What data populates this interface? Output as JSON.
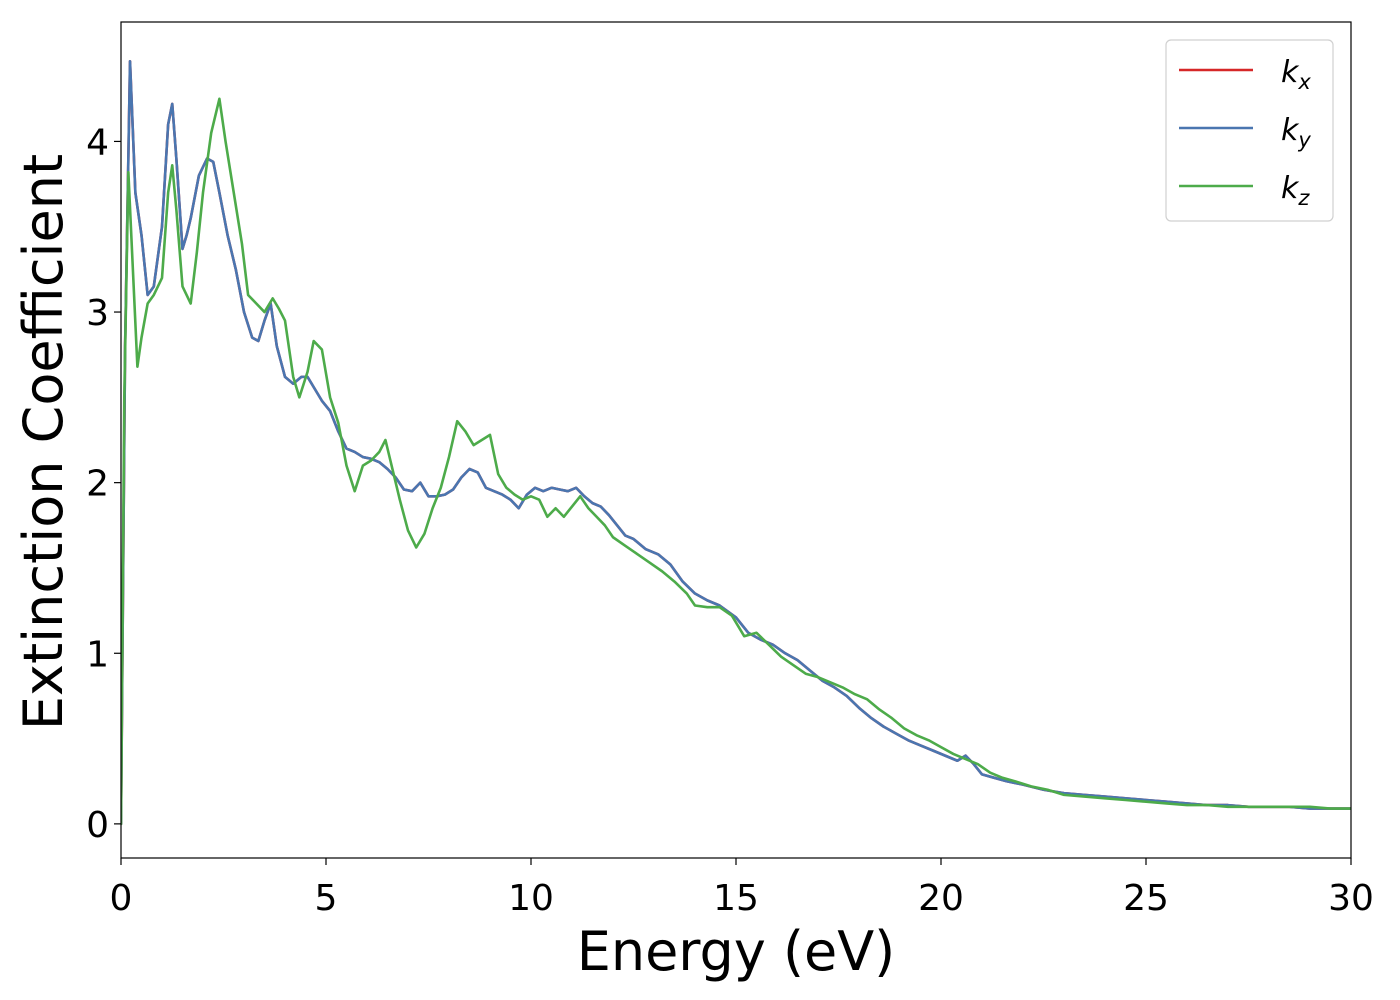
{
  "chart_data": {
    "type": "line",
    "xlabel": "Energy (eV)",
    "ylabel": "Extinction Coefficient",
    "xlim": [
      0,
      30
    ],
    "ylim": [
      -0.2,
      4.7
    ],
    "xticks": [
      0,
      5,
      10,
      15,
      20,
      25,
      30
    ],
    "xtick_labels": [
      "0",
      "5",
      "10",
      "15",
      "20",
      "25",
      "30"
    ],
    "yticks": [
      0,
      1,
      2,
      3,
      4
    ],
    "ytick_labels": [
      "0",
      "1",
      "2",
      "3",
      "4"
    ],
    "grid": false,
    "legend_position": "top-right",
    "series": [
      {
        "name": "k_x",
        "legend_base": "k",
        "legend_sub": "x",
        "color": "#d62728",
        "x": [
          0,
          0.1,
          0.22,
          0.35,
          0.5,
          0.65,
          0.8,
          1.0,
          1.15,
          1.25,
          1.35,
          1.5,
          1.6,
          1.7,
          1.9,
          2.1,
          2.25,
          2.4,
          2.6,
          2.8,
          3.0,
          3.2,
          3.35,
          3.5,
          3.65,
          3.8,
          4.0,
          4.2,
          4.4,
          4.55,
          4.7,
          4.9,
          5.1,
          5.3,
          5.5,
          5.7,
          5.9,
          6.1,
          6.3,
          6.5,
          6.7,
          6.9,
          7.1,
          7.3,
          7.5,
          7.7,
          7.9,
          8.1,
          8.3,
          8.5,
          8.7,
          8.9,
          9.1,
          9.3,
          9.5,
          9.7,
          9.9,
          10.1,
          10.3,
          10.5,
          10.7,
          10.9,
          11.1,
          11.3,
          11.5,
          11.7,
          11.9,
          12.1,
          12.3,
          12.5,
          12.8,
          13.1,
          13.4,
          13.7,
          14.0,
          14.3,
          14.6,
          15.0,
          15.3,
          15.6,
          15.9,
          16.2,
          16.5,
          16.8,
          17.1,
          17.4,
          17.7,
          18.0,
          18.3,
          18.6,
          18.9,
          19.2,
          19.5,
          19.8,
          20.1,
          20.4,
          20.6,
          20.8,
          21.0,
          21.3,
          21.6,
          22.0,
          22.5,
          23.0,
          23.5,
          24.0,
          24.5,
          25.0,
          25.5,
          26.0,
          26.5,
          27.0,
          27.5,
          28.0,
          28.5,
          29.0,
          29.5,
          30.0
        ],
        "y": [
          0.0,
          2.8,
          4.47,
          3.7,
          3.45,
          3.1,
          3.15,
          3.5,
          4.1,
          4.22,
          3.9,
          3.37,
          3.45,
          3.55,
          3.8,
          3.9,
          3.88,
          3.7,
          3.45,
          3.25,
          3.0,
          2.85,
          2.83,
          2.95,
          3.05,
          2.8,
          2.62,
          2.58,
          2.62,
          2.62,
          2.56,
          2.48,
          2.42,
          2.3,
          2.2,
          2.18,
          2.15,
          2.14,
          2.12,
          2.08,
          2.03,
          1.96,
          1.95,
          2.0,
          1.92,
          1.92,
          1.93,
          1.96,
          2.03,
          2.08,
          2.06,
          1.97,
          1.95,
          1.93,
          1.9,
          1.85,
          1.93,
          1.97,
          1.95,
          1.97,
          1.96,
          1.95,
          1.97,
          1.92,
          1.88,
          1.86,
          1.81,
          1.75,
          1.69,
          1.67,
          1.61,
          1.58,
          1.52,
          1.42,
          1.35,
          1.31,
          1.28,
          1.21,
          1.12,
          1.08,
          1.05,
          1.0,
          0.96,
          0.9,
          0.84,
          0.8,
          0.75,
          0.68,
          0.62,
          0.57,
          0.53,
          0.49,
          0.46,
          0.43,
          0.4,
          0.37,
          0.4,
          0.35,
          0.29,
          0.27,
          0.25,
          0.23,
          0.2,
          0.18,
          0.17,
          0.16,
          0.15,
          0.14,
          0.13,
          0.12,
          0.11,
          0.11,
          0.1,
          0.1,
          0.1,
          0.09,
          0.09,
          0.09
        ]
      },
      {
        "name": "k_y",
        "legend_base": "k",
        "legend_sub": "y",
        "color": "#4a76b0",
        "x": [
          0,
          0.1,
          0.22,
          0.35,
          0.5,
          0.65,
          0.8,
          1.0,
          1.15,
          1.25,
          1.35,
          1.5,
          1.6,
          1.7,
          1.9,
          2.1,
          2.25,
          2.4,
          2.6,
          2.8,
          3.0,
          3.2,
          3.35,
          3.5,
          3.65,
          3.8,
          4.0,
          4.2,
          4.4,
          4.55,
          4.7,
          4.9,
          5.1,
          5.3,
          5.5,
          5.7,
          5.9,
          6.1,
          6.3,
          6.5,
          6.7,
          6.9,
          7.1,
          7.3,
          7.5,
          7.7,
          7.9,
          8.1,
          8.3,
          8.5,
          8.7,
          8.9,
          9.1,
          9.3,
          9.5,
          9.7,
          9.9,
          10.1,
          10.3,
          10.5,
          10.7,
          10.9,
          11.1,
          11.3,
          11.5,
          11.7,
          11.9,
          12.1,
          12.3,
          12.5,
          12.8,
          13.1,
          13.4,
          13.7,
          14.0,
          14.3,
          14.6,
          15.0,
          15.3,
          15.6,
          15.9,
          16.2,
          16.5,
          16.8,
          17.1,
          17.4,
          17.7,
          18.0,
          18.3,
          18.6,
          18.9,
          19.2,
          19.5,
          19.8,
          20.1,
          20.4,
          20.6,
          20.8,
          21.0,
          21.3,
          21.6,
          22.0,
          22.5,
          23.0,
          23.5,
          24.0,
          24.5,
          25.0,
          25.5,
          26.0,
          26.5,
          27.0,
          27.5,
          28.0,
          28.5,
          29.0,
          29.5,
          30.0
        ],
        "y": [
          0.0,
          2.8,
          4.47,
          3.7,
          3.45,
          3.1,
          3.15,
          3.5,
          4.1,
          4.22,
          3.9,
          3.37,
          3.45,
          3.55,
          3.8,
          3.9,
          3.88,
          3.7,
          3.45,
          3.25,
          3.0,
          2.85,
          2.83,
          2.95,
          3.05,
          2.8,
          2.62,
          2.58,
          2.62,
          2.62,
          2.56,
          2.48,
          2.42,
          2.3,
          2.2,
          2.18,
          2.15,
          2.14,
          2.12,
          2.08,
          2.03,
          1.96,
          1.95,
          2.0,
          1.92,
          1.92,
          1.93,
          1.96,
          2.03,
          2.08,
          2.06,
          1.97,
          1.95,
          1.93,
          1.9,
          1.85,
          1.93,
          1.97,
          1.95,
          1.97,
          1.96,
          1.95,
          1.97,
          1.92,
          1.88,
          1.86,
          1.81,
          1.75,
          1.69,
          1.67,
          1.61,
          1.58,
          1.52,
          1.42,
          1.35,
          1.31,
          1.28,
          1.21,
          1.12,
          1.08,
          1.05,
          1.0,
          0.96,
          0.9,
          0.84,
          0.8,
          0.75,
          0.68,
          0.62,
          0.57,
          0.53,
          0.49,
          0.46,
          0.43,
          0.4,
          0.37,
          0.4,
          0.35,
          0.29,
          0.27,
          0.25,
          0.23,
          0.2,
          0.18,
          0.17,
          0.16,
          0.15,
          0.14,
          0.13,
          0.12,
          0.11,
          0.11,
          0.1,
          0.1,
          0.1,
          0.09,
          0.09,
          0.09
        ]
      },
      {
        "name": "k_z",
        "legend_base": "k",
        "legend_sub": "z",
        "color": "#4dab4a",
        "x": [
          0,
          0.08,
          0.18,
          0.28,
          0.4,
          0.5,
          0.65,
          0.8,
          1.0,
          1.15,
          1.25,
          1.35,
          1.5,
          1.7,
          1.85,
          2.0,
          2.2,
          2.4,
          2.55,
          2.75,
          2.95,
          3.1,
          3.3,
          3.5,
          3.7,
          3.85,
          4.0,
          4.2,
          4.35,
          4.55,
          4.7,
          4.9,
          5.1,
          5.3,
          5.5,
          5.7,
          5.9,
          6.1,
          6.3,
          6.45,
          6.6,
          6.8,
          7.0,
          7.2,
          7.4,
          7.6,
          7.8,
          8.0,
          8.2,
          8.4,
          8.6,
          8.8,
          9.0,
          9.2,
          9.4,
          9.6,
          9.8,
          10.0,
          10.2,
          10.4,
          10.6,
          10.8,
          11.0,
          11.2,
          11.4,
          11.6,
          11.8,
          12.0,
          12.3,
          12.6,
          12.9,
          13.2,
          13.5,
          13.8,
          14.0,
          14.3,
          14.6,
          14.9,
          15.2,
          15.5,
          15.8,
          16.1,
          16.4,
          16.7,
          17.0,
          17.3,
          17.6,
          17.9,
          18.2,
          18.5,
          18.8,
          19.1,
          19.4,
          19.7,
          20.0,
          20.3,
          20.6,
          20.9,
          21.2,
          21.5,
          21.8,
          22.2,
          22.6,
          23.0,
          23.5,
          24.0,
          24.5,
          25.0,
          25.5,
          26.0,
          26.5,
          27.0,
          27.5,
          28.0,
          28.5,
          29.0,
          29.5,
          30.0
        ],
        "y": [
          0.0,
          2.5,
          3.82,
          3.3,
          2.68,
          2.85,
          3.05,
          3.1,
          3.2,
          3.7,
          3.86,
          3.6,
          3.15,
          3.05,
          3.35,
          3.7,
          4.05,
          4.25,
          4.0,
          3.7,
          3.4,
          3.1,
          3.05,
          3.0,
          3.08,
          3.02,
          2.95,
          2.62,
          2.5,
          2.65,
          2.83,
          2.78,
          2.5,
          2.35,
          2.1,
          1.95,
          2.1,
          2.13,
          2.18,
          2.25,
          2.1,
          1.9,
          1.72,
          1.62,
          1.7,
          1.85,
          1.97,
          2.15,
          2.36,
          2.3,
          2.22,
          2.25,
          2.28,
          2.05,
          1.97,
          1.93,
          1.9,
          1.92,
          1.9,
          1.8,
          1.85,
          1.8,
          1.86,
          1.92,
          1.85,
          1.8,
          1.75,
          1.68,
          1.63,
          1.58,
          1.53,
          1.48,
          1.42,
          1.35,
          1.28,
          1.27,
          1.27,
          1.22,
          1.1,
          1.12,
          1.05,
          0.98,
          0.93,
          0.88,
          0.86,
          0.83,
          0.8,
          0.76,
          0.73,
          0.67,
          0.62,
          0.56,
          0.52,
          0.49,
          0.45,
          0.41,
          0.38,
          0.35,
          0.3,
          0.27,
          0.25,
          0.22,
          0.2,
          0.17,
          0.16,
          0.15,
          0.14,
          0.13,
          0.12,
          0.11,
          0.11,
          0.1,
          0.1,
          0.1,
          0.1,
          0.1,
          0.09,
          0.09
        ]
      }
    ]
  }
}
